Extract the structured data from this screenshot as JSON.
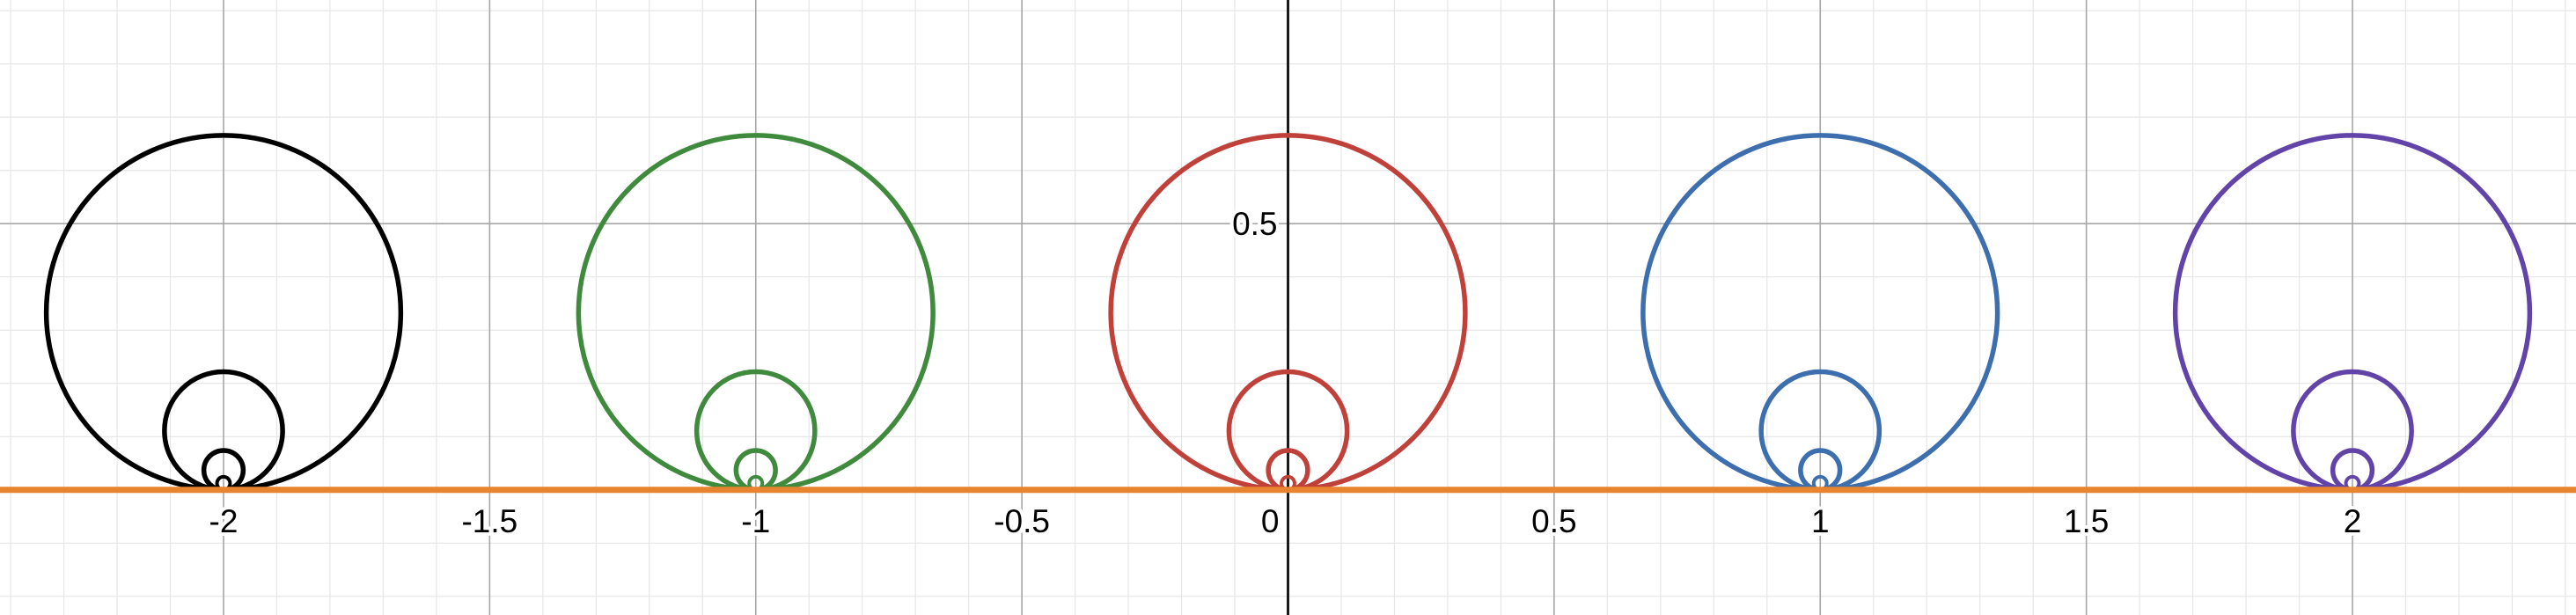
{
  "chart_data": {
    "type": "scatter",
    "title": "",
    "xlabel": "",
    "ylabel": "",
    "xlim": [
      -2.42,
      2.42
    ],
    "ylim": [
      -0.235,
      0.92
    ],
    "grid": true,
    "legend": "none",
    "x_ticks": [
      -2,
      -1.5,
      -1,
      -0.5,
      0,
      0.5,
      1,
      1.5,
      2
    ],
    "x_tick_labels": [
      "-2",
      "-1.5",
      "-1",
      "-0.5",
      "0",
      "0.5",
      "1",
      "1.5",
      "2"
    ],
    "y_ticks": [
      0.5
    ],
    "y_tick_labels": [
      "0.5"
    ],
    "line": {
      "name": "y = 0",
      "y": 0,
      "color": "#e8842f"
    },
    "circle_radii": [
      0.333,
      0.111,
      0.037,
      0.0123
    ],
    "series": [
      {
        "center_x": -2,
        "color": "#000000"
      },
      {
        "center_x": -1,
        "color": "#3f8a3c"
      },
      {
        "center_x": 0,
        "color": "#c0413a"
      },
      {
        "center_x": 1,
        "color": "#3d6ead"
      },
      {
        "center_x": 2,
        "color": "#6244a8"
      }
    ]
  }
}
